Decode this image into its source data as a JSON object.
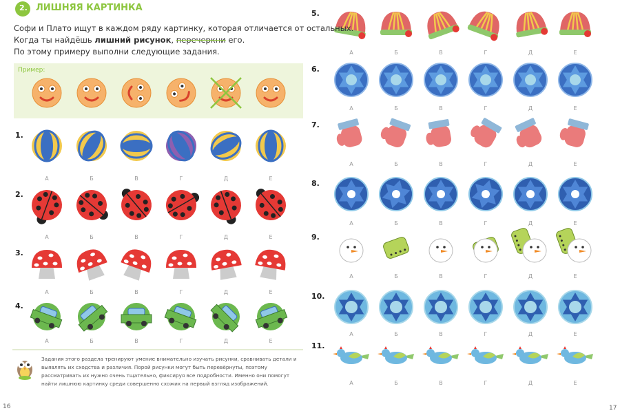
{
  "header": {
    "number": "2.",
    "title": "ЛИШНЯЯ КАРТИНКА"
  },
  "intro": {
    "line1": "Софи и Плато ищут в каждом ряду картинку, которая отличается от остальных.",
    "line2": [
      "Когда ты найдёшь ",
      "лишний рисунок",
      ", ",
      "перечеркни",
      " его."
    ],
    "line3": "По этому примеру выполни следующие задания."
  },
  "example": {
    "label": "Пример:"
  },
  "rows": [
    "1.",
    "2.",
    "3.",
    "4.",
    "5.",
    "6.",
    "7.",
    "8.",
    "9.",
    "10.",
    "11."
  ],
  "letters": [
    "А",
    "Б",
    "В",
    "Г",
    "Д",
    "Е"
  ],
  "footnote": "Задания этого раздела тренируют умение внимательно изучать рисунки, сравнивать детали и выявлять их сходства и различия. Порой рисунки могут быть перевёрнуты, поэтому рассматривать их нужно очень тщательно, фиксируя все подробности. Именно они помогут найти лишнюю картинку среди совершенно схожих на первый взгляд изображений.",
  "pages": {
    "left": "16",
    "right": "17"
  }
}
